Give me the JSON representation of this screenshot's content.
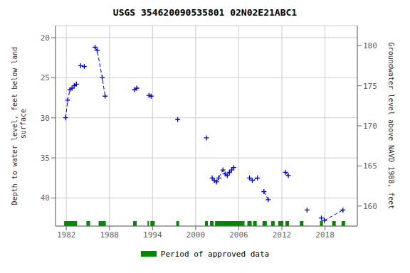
{
  "chart_data": {
    "type": "line",
    "title": "USGS 354620090535801 02N02E21ABC1",
    "y_label": "Depth to water level, feet below land\n surface",
    "y2_label": "Groundwater level above NAVD 1988, feet",
    "xlim": [
      1980.5,
      2022.5
    ],
    "xticks": [
      1982,
      1988,
      1994,
      2000,
      2006,
      2012,
      2018
    ],
    "ylim": [
      43.5,
      18.5
    ],
    "yticks": [
      20,
      25,
      30,
      35,
      40
    ],
    "y2lim": [
      157.5,
      182.5
    ],
    "y2ticks": [
      160,
      165,
      170,
      175,
      180
    ],
    "grid": true,
    "legend": "bottom",
    "x": [
      1981.9,
      1982.2,
      1982.5,
      1982.8,
      1983.1,
      1983.4,
      1984.0,
      1984.5,
      1986.0,
      1986.3,
      1987.0,
      1987.4,
      1991.5,
      1991.8,
      1993.5,
      1993.8,
      1997.5,
      2001.5,
      2002.3,
      2002.6,
      2002.9,
      2003.2,
      2003.8,
      2004.1,
      2004.4,
      2004.7,
      2005.0,
      2005.3,
      2007.5,
      2007.9,
      2008.6,
      2009.5,
      2010.1,
      2012.5,
      2012.9,
      2015.5,
      2017.5,
      2017.9,
      2020.5
    ],
    "series": [
      {
        "color": "#0000cc",
        "marker": "plus",
        "line_style": "dashed",
        "values": [
          30.0,
          27.8,
          26.5,
          26.3,
          26.0,
          25.8,
          23.5,
          23.6,
          21.2,
          21.6,
          25.0,
          27.3,
          26.5,
          26.3,
          27.2,
          27.3,
          30.2,
          32.5,
          37.5,
          37.8,
          38.0,
          37.5,
          36.5,
          37.0,
          37.2,
          36.8,
          36.5,
          36.2,
          37.5,
          37.8,
          37.5,
          39.2,
          40.2,
          36.8,
          37.2,
          41.5,
          42.5,
          42.8,
          41.5
        ],
        "connected_segments": [
          [
            0,
            1,
            2,
            3,
            4,
            5
          ],
          [
            6,
            7
          ],
          [
            8,
            9,
            10,
            11
          ],
          [
            12,
            13
          ],
          [
            14,
            15
          ],
          [
            18,
            19,
            20,
            21,
            22,
            23,
            24,
            25,
            26,
            27
          ],
          [
            28,
            29,
            30
          ],
          [
            31,
            32
          ],
          [
            33,
            34
          ],
          [
            37,
            38
          ]
        ]
      }
    ],
    "periods": {
      "name": "Period of approved data",
      "color": "#008800",
      "ranges": [
        [
          1981.7,
          1983.5
        ],
        [
          1984.8,
          1985.3
        ],
        [
          1986.5,
          1987.5
        ],
        [
          1991.3,
          1991.8
        ],
        [
          1993.3,
          1993.5
        ],
        [
          1993.7,
          1994.3
        ],
        [
          1997.3,
          1997.7
        ],
        [
          2001.3,
          2001.7
        ],
        [
          2002.0,
          2002.5
        ],
        [
          2002.7,
          2006.8
        ],
        [
          2007.2,
          2007.8
        ],
        [
          2008.0,
          2008.5
        ],
        [
          2009.3,
          2009.9
        ],
        [
          2010.5,
          2011.0
        ],
        [
          2011.5,
          2012.2
        ],
        [
          2012.5,
          2013.0
        ],
        [
          2014.5,
          2015.0
        ],
        [
          2017.3,
          2017.7
        ],
        [
          2019.0,
          2019.5
        ],
        [
          2020.3,
          2020.8
        ]
      ]
    }
  }
}
